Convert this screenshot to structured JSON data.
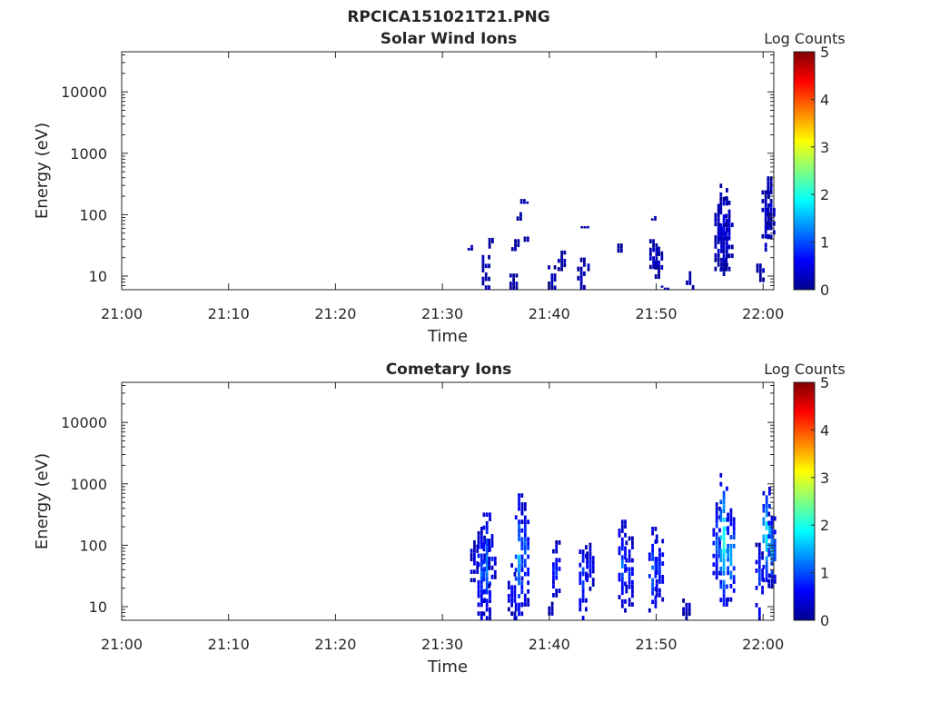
{
  "figure_title": "RPCICA151021T21.PNG",
  "chart_data": [
    {
      "type": "heatmap",
      "title": "Solar Wind Ions",
      "xlabel": "Time",
      "ylabel": "Energy (eV)",
      "y_scale": "log",
      "ylim": [
        6,
        45000
      ],
      "xlim_minutes_after_21_00": [
        0,
        61
      ],
      "x_tick_labels": [
        "21:00",
        "21:10",
        "21:20",
        "21:30",
        "21:40",
        "21:50",
        "22:00"
      ],
      "x_tick_values": [
        "21:00",
        "21:10",
        "21:20",
        "21:30",
        "21:40",
        "21:50",
        "22:00"
      ],
      "y_ticks": [
        10,
        100,
        1000,
        10000
      ],
      "y_tick_labels": [
        "10",
        "100",
        "1000",
        "10000"
      ],
      "colorbar": {
        "label": "Log Counts",
        "range": [
          0,
          5
        ],
        "ticks": [
          "0",
          "1",
          "2",
          "3",
          "4",
          "5"
        ],
        "colormap": "jet",
        "colors": [
          "#00008f",
          "#0000ff",
          "#0080ff",
          "#00ffff",
          "#80ff80",
          "#ffff00",
          "#ff8000",
          "#ff0000",
          "#800000"
        ]
      },
      "bursts": [
        {
          "t": "21:32:45",
          "e_min": 26,
          "e_max": 32,
          "level": 0.2
        },
        {
          "t": "21:34:05",
          "e_min": 6,
          "e_max": 22,
          "level": 0.2
        },
        {
          "t": "21:34:25",
          "e_min": 28,
          "e_max": 42,
          "level": 0.2
        },
        {
          "t": "21:36:40",
          "e_min": 6,
          "e_max": 11,
          "level": 0.2
        },
        {
          "t": "21:36:50",
          "e_min": 22,
          "e_max": 40,
          "level": 0.2
        },
        {
          "t": "21:37:20",
          "e_min": 80,
          "e_max": 110,
          "level": 0.2
        },
        {
          "t": "21:37:40",
          "e_min": 150,
          "e_max": 180,
          "level": 0.2
        },
        {
          "t": "21:38:00",
          "e_min": 36,
          "e_max": 44,
          "level": 0.2
        },
        {
          "t": "21:40:15",
          "e_min": 6,
          "e_max": 15,
          "level": 0.2
        },
        {
          "t": "21:41:10",
          "e_min": 12,
          "e_max": 26,
          "level": 0.2
        },
        {
          "t": "21:43:00",
          "e_min": 6,
          "e_max": 20,
          "level": 0.2
        },
        {
          "t": "21:43:20",
          "e_min": 55,
          "e_max": 65,
          "level": 0.2
        },
        {
          "t": "21:43:40",
          "e_min": 12,
          "e_max": 16,
          "level": 0.2
        },
        {
          "t": "21:46:45",
          "e_min": 24,
          "e_max": 34,
          "level": 0.2
        },
        {
          "t": "21:49:45",
          "e_min": 13,
          "e_max": 40,
          "level": 0.3
        },
        {
          "t": "21:49:55",
          "e_min": 80,
          "e_max": 95,
          "level": 0.2
        },
        {
          "t": "21:50:15",
          "e_min": 9,
          "e_max": 30,
          "level": 0.25
        },
        {
          "t": "21:50:50",
          "e_min": 6,
          "e_max": 7,
          "level": 0.2
        },
        {
          "t": "21:53:10",
          "e_min": 6,
          "e_max": 12,
          "level": 0.2
        },
        {
          "t": "21:55:50",
          "e_min": 12,
          "e_max": 150,
          "level": 0.35
        },
        {
          "t": "21:56:20",
          "e_min": 10,
          "e_max": 320,
          "level": 0.45
        },
        {
          "t": "21:56:50",
          "e_min": 12,
          "e_max": 200,
          "level": 0.35
        },
        {
          "t": "21:59:45",
          "e_min": 8,
          "e_max": 16,
          "level": 0.2
        },
        {
          "t": "22:00:15",
          "e_min": 25,
          "e_max": 250,
          "level": 0.35
        },
        {
          "t": "22:00:45",
          "e_min": 40,
          "e_max": 420,
          "level": 0.4
        }
      ]
    },
    {
      "type": "heatmap",
      "title": "Cometary Ions",
      "xlabel": "Time",
      "ylabel": "Energy (eV)",
      "y_scale": "log",
      "ylim": [
        6,
        45000
      ],
      "xlim_minutes_after_21_00": [
        0,
        61
      ],
      "x_tick_labels": [
        "21:00",
        "21:10",
        "21:20",
        "21:30",
        "21:40",
        "21:50",
        "22:00"
      ],
      "x_tick_values": [
        "21:00",
        "21:10",
        "21:20",
        "21:30",
        "21:40",
        "21:50",
        "22:00"
      ],
      "y_ticks": [
        10,
        100,
        1000,
        10000
      ],
      "y_tick_labels": [
        "10",
        "100",
        "1000",
        "10000"
      ],
      "colorbar": {
        "label": "Log Counts",
        "range": [
          0,
          5
        ],
        "ticks": [
          "0",
          "1",
          "2",
          "3",
          "4",
          "5"
        ],
        "colormap": "jet",
        "colors": [
          "#00008f",
          "#0000ff",
          "#0080ff",
          "#00ffff",
          "#80ff80",
          "#ffff00",
          "#ff8000",
          "#ff0000",
          "#800000"
        ]
      },
      "bursts": [
        {
          "t": "21:33:00",
          "e_min": 25,
          "e_max": 120,
          "level": 0.5
        },
        {
          "t": "21:33:40",
          "e_min": 6,
          "e_max": 200,
          "level": 1.0
        },
        {
          "t": "21:34:10",
          "e_min": 6,
          "e_max": 400,
          "level": 1.3
        },
        {
          "t": "21:34:40",
          "e_min": 20,
          "e_max": 180,
          "level": 0.6
        },
        {
          "t": "21:36:30",
          "e_min": 6,
          "e_max": 60,
          "level": 0.7
        },
        {
          "t": "21:37:10",
          "e_min": 6,
          "e_max": 700,
          "level": 1.5
        },
        {
          "t": "21:37:45",
          "e_min": 10,
          "e_max": 500,
          "level": 1.2
        },
        {
          "t": "21:40:00",
          "e_min": 6,
          "e_max": 12,
          "level": 0.4
        },
        {
          "t": "21:40:40",
          "e_min": 12,
          "e_max": 120,
          "level": 0.9
        },
        {
          "t": "21:43:10",
          "e_min": 6,
          "e_max": 140,
          "level": 1.0
        },
        {
          "t": "21:43:50",
          "e_min": 18,
          "e_max": 110,
          "level": 0.7
        },
        {
          "t": "21:46:50",
          "e_min": 8,
          "e_max": 260,
          "level": 1.1
        },
        {
          "t": "21:47:30",
          "e_min": 10,
          "e_max": 140,
          "level": 0.8
        },
        {
          "t": "21:49:40",
          "e_min": 8,
          "e_max": 200,
          "level": 1.2
        },
        {
          "t": "21:50:20",
          "e_min": 12,
          "e_max": 150,
          "level": 1.0
        },
        {
          "t": "21:52:50",
          "e_min": 6,
          "e_max": 16,
          "level": 0.4
        },
        {
          "t": "21:55:40",
          "e_min": 20,
          "e_max": 500,
          "level": 1.1
        },
        {
          "t": "21:56:20",
          "e_min": 10,
          "e_max": 1500,
          "level": 2.1
        },
        {
          "t": "21:57:00",
          "e_min": 12,
          "e_max": 400,
          "level": 1.6
        },
        {
          "t": "21:59:40",
          "e_min": 6,
          "e_max": 110,
          "level": 1.0
        },
        {
          "t": "22:00:20",
          "e_min": 25,
          "e_max": 900,
          "level": 2.0
        },
        {
          "t": "22:00:50",
          "e_min": 20,
          "e_max": 350,
          "level": 1.4
        }
      ]
    }
  ]
}
